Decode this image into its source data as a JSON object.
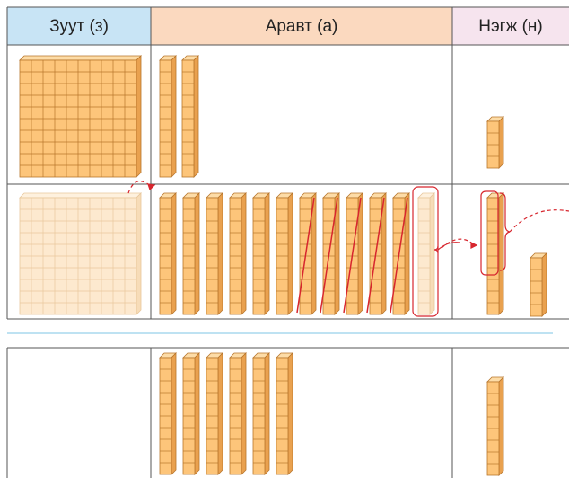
{
  "header": {
    "columns": [
      "Зуут (з)",
      "Аравт (а)",
      "Нэгж (н)"
    ]
  }
}
